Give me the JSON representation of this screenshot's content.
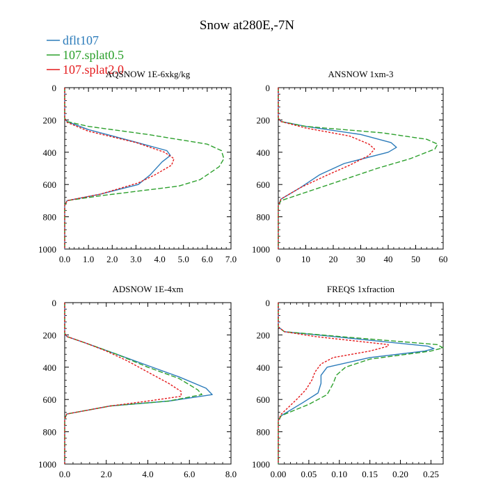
{
  "figure": {
    "title": "Snow at280E,-7N",
    "colors": {
      "dflt107": "#2b7bba",
      "splat05": "#2ca02c",
      "splat20": "#e41a1c"
    }
  },
  "legend": {
    "entries": [
      {
        "label": "dflt107",
        "color": "#2b7bba",
        "style": "solid"
      },
      {
        "label": "107.splat0.5",
        "color": "#2ca02c",
        "style": "dashed"
      },
      {
        "label": "107.splat2.0",
        "color": "#e41a1c",
        "style": "dotted"
      }
    ]
  },
  "chart_data": [
    {
      "type": "line",
      "title": "AQSNOW  1E-6xkg/kg",
      "xlim": [
        0,
        7
      ],
      "xticks": [
        0,
        1,
        2,
        3,
        4,
        5,
        6,
        7
      ],
      "xtick_labels": [
        "0.0",
        "1.0",
        "2.0",
        "3.0",
        "4.0",
        "5.0",
        "6.0",
        "7.0"
      ],
      "ylim": [
        1000,
        0
      ],
      "yticks": [
        0,
        200,
        400,
        600,
        800,
        1000
      ],
      "ytick_labels": [
        "0",
        "200",
        "400",
        "600",
        "800",
        "1000"
      ],
      "series": [
        {
          "name": "dflt107",
          "x": [
            0,
            0,
            0.1,
            1.0,
            2.8,
            4.3,
            4.45,
            4.1,
            3.6,
            3.1,
            1.5,
            0.1,
            0,
            0
          ],
          "y": [
            0,
            190,
            210,
            260,
            330,
            390,
            420,
            460,
            540,
            600,
            660,
            700,
            730,
            1000
          ]
        },
        {
          "name": "107.splat0.5",
          "x": [
            0,
            0,
            0.1,
            1.0,
            3.5,
            6.0,
            6.6,
            6.7,
            6.5,
            5.7,
            4.8,
            1.5,
            0.1,
            0,
            0
          ],
          "y": [
            0,
            190,
            210,
            240,
            290,
            350,
            390,
            440,
            490,
            570,
            610,
            670,
            700,
            730,
            1000
          ]
        },
        {
          "name": "107.splat2.0",
          "x": [
            0,
            0,
            0.1,
            1.0,
            3.0,
            4.2,
            4.6,
            4.5,
            3.8,
            3.1,
            1.5,
            0.1,
            0,
            0
          ],
          "y": [
            0,
            190,
            215,
            270,
            340,
            400,
            440,
            480,
            540,
            590,
            660,
            700,
            730,
            1000
          ]
        }
      ]
    },
    {
      "type": "line",
      "title": "ANSNOW  1xm-3",
      "xlim": [
        0,
        60
      ],
      "xticks": [
        0,
        10,
        20,
        30,
        40,
        50,
        60
      ],
      "xtick_labels": [
        "0",
        "10",
        "20",
        "30",
        "40",
        "50",
        "60"
      ],
      "ylim": [
        1000,
        0
      ],
      "yticks": [
        0,
        200,
        400,
        600,
        800,
        1000
      ],
      "ytick_labels": [
        "0",
        "200",
        "400",
        "600",
        "800",
        "1000"
      ],
      "series": [
        {
          "name": "dflt107",
          "x": [
            0,
            0,
            1,
            10,
            30,
            41,
            43,
            40,
            24,
            15,
            8,
            1,
            0,
            0
          ],
          "y": [
            0,
            190,
            210,
            240,
            290,
            340,
            370,
            400,
            470,
            540,
            620,
            690,
            730,
            1000
          ]
        },
        {
          "name": "107.splat0.5",
          "x": [
            0,
            0,
            1,
            10,
            38,
            54,
            58,
            57,
            48,
            36,
            22,
            8,
            1,
            0,
            0
          ],
          "y": [
            0,
            190,
            210,
            240,
            280,
            320,
            350,
            380,
            440,
            500,
            580,
            660,
            700,
            730,
            1000
          ]
        },
        {
          "name": "107.splat2.0",
          "x": [
            0,
            0,
            1,
            10,
            26,
            33,
            35,
            33,
            26,
            18,
            8,
            1,
            0,
            0
          ],
          "y": [
            0,
            190,
            210,
            250,
            300,
            350,
            380,
            420,
            480,
            540,
            620,
            690,
            730,
            1000
          ]
        }
      ]
    },
    {
      "type": "line",
      "title": "ADSNOW  1E-4xm",
      "xlim": [
        0,
        8
      ],
      "xticks": [
        0,
        2,
        4,
        6,
        8
      ],
      "xtick_labels": [
        "0.0",
        "2.0",
        "4.0",
        "6.0",
        "8.0"
      ],
      "ylim": [
        1000,
        0
      ],
      "yticks": [
        0,
        200,
        400,
        600,
        800,
        1000
      ],
      "ytick_labels": [
        "0",
        "200",
        "400",
        "600",
        "800",
        "1000"
      ],
      "series": [
        {
          "name": "dflt107",
          "x": [
            0,
            0,
            0.1,
            1.0,
            2.5,
            4.0,
            5.5,
            6.8,
            7.1,
            5.0,
            2.2,
            0.1,
            0,
            0
          ],
          "y": [
            0,
            190,
            210,
            250,
            320,
            390,
            460,
            530,
            570,
            610,
            640,
            690,
            720,
            1000
          ]
        },
        {
          "name": "107.splat0.5",
          "x": [
            0,
            0,
            0.1,
            1.0,
            2.5,
            4.0,
            5.5,
            6.4,
            6.6,
            5.0,
            2.2,
            0.1,
            0,
            0
          ],
          "y": [
            0,
            190,
            210,
            250,
            320,
            400,
            470,
            540,
            570,
            610,
            640,
            690,
            720,
            1000
          ]
        },
        {
          "name": "107.splat2.0",
          "x": [
            0,
            0,
            0.1,
            1.0,
            2.0,
            3.0,
            4.0,
            5.0,
            5.6,
            5.6,
            4.0,
            2.2,
            0.1,
            0,
            0
          ],
          "y": [
            0,
            190,
            210,
            250,
            300,
            360,
            430,
            500,
            550,
            580,
            610,
            640,
            690,
            720,
            1000
          ]
        }
      ]
    },
    {
      "type": "line",
      "title": "FREQS  1xfraction",
      "xlim": [
        0,
        0.27
      ],
      "xticks": [
        0,
        0.05,
        0.1,
        0.15,
        0.2,
        0.25
      ],
      "xtick_labels": [
        "0.00",
        "0.05",
        "0.10",
        "0.15",
        "0.20",
        "0.25"
      ],
      "ylim": [
        1000,
        0
      ],
      "yticks": [
        0,
        200,
        400,
        600,
        800,
        1000
      ],
      "ytick_labels": [
        "0",
        "200",
        "400",
        "600",
        "800",
        "1000"
      ],
      "series": [
        {
          "name": "dflt107",
          "x": [
            0,
            0,
            0.01,
            0.09,
            0.245,
            0.255,
            0.24,
            0.15,
            0.08,
            0.07,
            0.07,
            0.065,
            0.04,
            0.005,
            0,
            0
          ],
          "y": [
            0,
            150,
            180,
            210,
            270,
            285,
            300,
            340,
            400,
            450,
            500,
            560,
            620,
            700,
            730,
            1000
          ]
        },
        {
          "name": "107.splat0.5",
          "x": [
            0,
            0,
            0.01,
            0.1,
            0.26,
            0.27,
            0.25,
            0.15,
            0.11,
            0.095,
            0.09,
            0.08,
            0.05,
            0.005,
            0,
            0
          ],
          "y": [
            0,
            150,
            180,
            210,
            260,
            280,
            300,
            350,
            400,
            450,
            500,
            570,
            630,
            700,
            730,
            1000
          ]
        },
        {
          "name": "107.splat2.0",
          "x": [
            0,
            0,
            0.01,
            0.06,
            0.18,
            0.18,
            0.15,
            0.09,
            0.07,
            0.06,
            0.055,
            0.045,
            0.03,
            0.005,
            0,
            0
          ],
          "y": [
            0,
            150,
            180,
            210,
            260,
            270,
            300,
            340,
            380,
            430,
            480,
            540,
            600,
            690,
            730,
            1000
          ]
        }
      ]
    }
  ]
}
